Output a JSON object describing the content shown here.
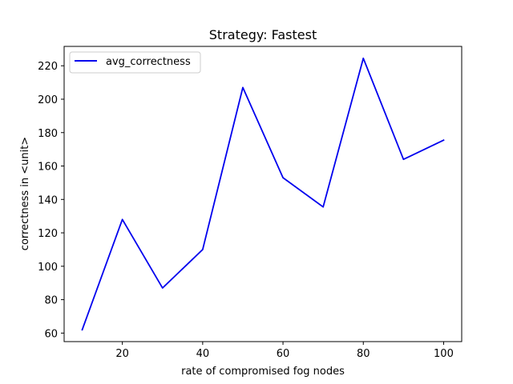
{
  "chart_data": {
    "type": "line",
    "title": "Strategy: Fastest",
    "xlabel": "rate of compromised fog nodes",
    "ylabel": "correctness in <unit>",
    "x": [
      10,
      20,
      30,
      40,
      50,
      60,
      70,
      80,
      90,
      100
    ],
    "series": [
      {
        "name": "avg_correctness",
        "color": "#0000ee",
        "values": [
          62,
          128,
          87,
          110,
          207,
          153,
          135.5,
          224.5,
          164,
          175.5
        ]
      }
    ],
    "xlim": [
      5.5,
      104.5
    ],
    "ylim": [
      54.9,
      231.6
    ],
    "xticks": [
      20,
      40,
      60,
      80,
      100
    ],
    "yticks": [
      60,
      80,
      100,
      120,
      140,
      160,
      180,
      200,
      220
    ],
    "grid": false,
    "legend_position": "top-left"
  }
}
